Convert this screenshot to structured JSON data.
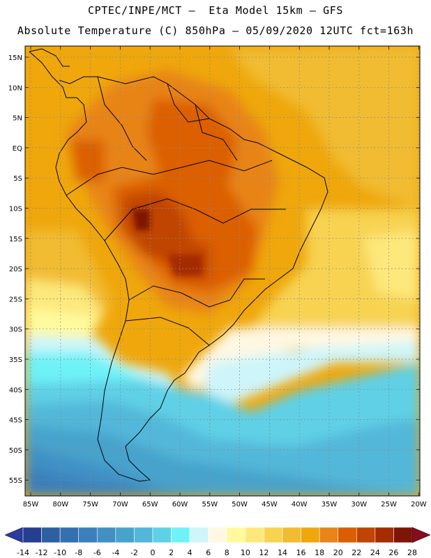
{
  "header": {
    "line1": "CPTEC/INPE/MCT –  Eta Model 15km – GFS",
    "line2": "Absolute Temperature (C) 850hPa – 05/09/2020 12UTC fct=163h"
  },
  "map": {
    "lat_labels": [
      "15N",
      "10N",
      "5N",
      "EQ",
      "5S",
      "10S",
      "15S",
      "20S",
      "25S",
      "30S",
      "35S",
      "40S",
      "45S",
      "50S",
      "55S"
    ],
    "lon_labels": [
      "85W",
      "80W",
      "75W",
      "70W",
      "65W",
      "60W",
      "55W",
      "50W",
      "45W",
      "40W",
      "35W",
      "30W",
      "25W",
      "20W"
    ]
  },
  "colorbar": {
    "labels": [
      "-14",
      "-12",
      "-10",
      "-8",
      "-6",
      "-4",
      "-2",
      "0",
      "2",
      "4",
      "6",
      "8",
      "10",
      "12",
      "14",
      "16",
      "18",
      "20",
      "22",
      "24",
      "26",
      "28"
    ],
    "colors": [
      "#243f8f",
      "#2d5fa3",
      "#3470b0",
      "#3b80bb",
      "#4190c4",
      "#47a3cc",
      "#52b7d9",
      "#5fd0e6",
      "#6ef2f7",
      "#cdf5fa",
      "#fef8e3",
      "#fffa9c",
      "#fde87b",
      "#f7d351",
      "#f1bc31",
      "#efa70c",
      "#e88419",
      "#dc5e03",
      "#c04404",
      "#a52b01",
      "#7e1505"
    ],
    "under_color": "#2a3a9e",
    "over_color": "#8b0b1e"
  }
}
